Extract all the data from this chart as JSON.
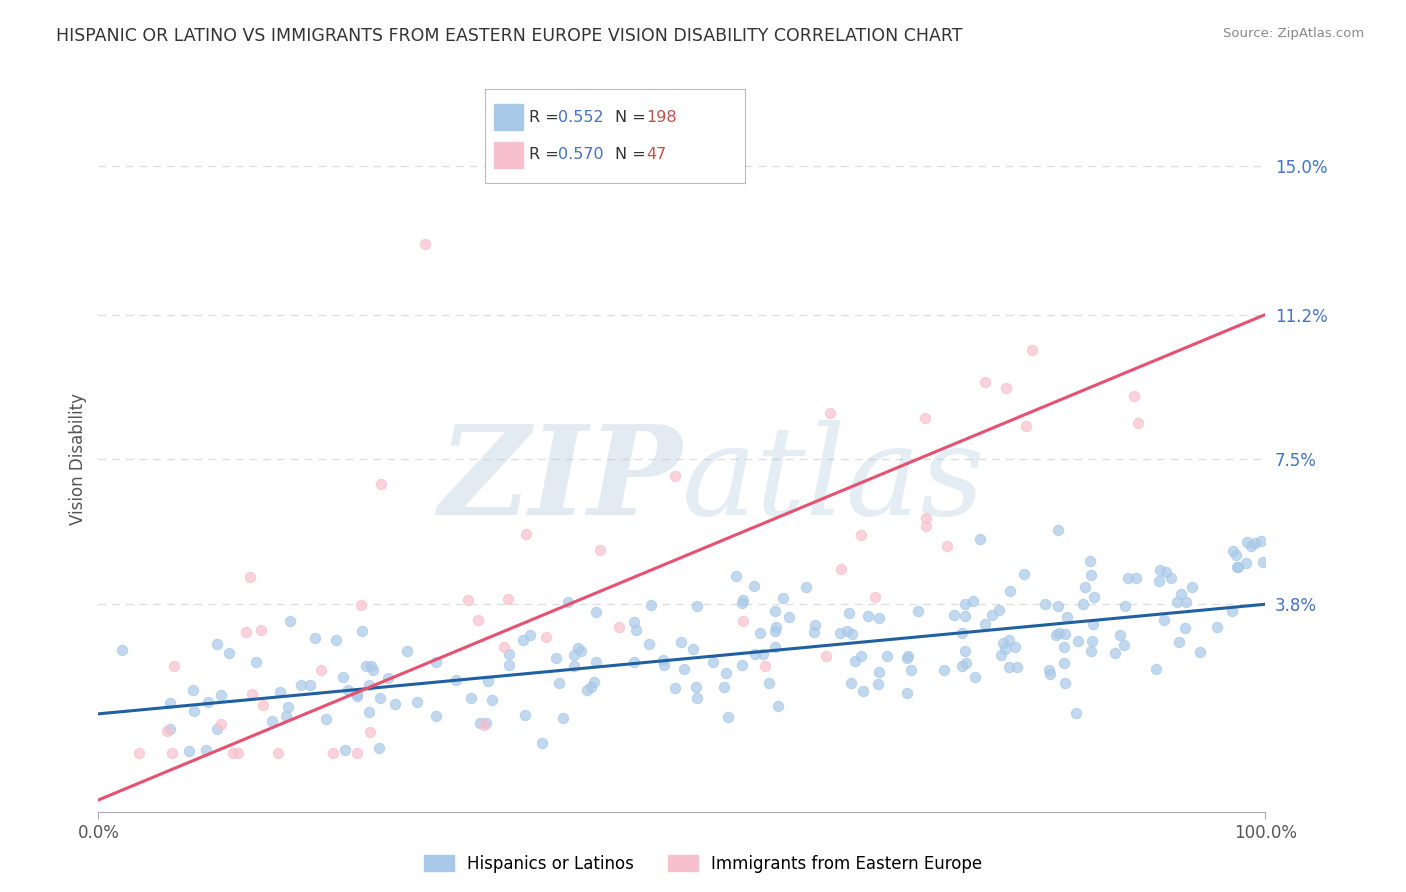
{
  "title": "HISPANIC OR LATINO VS IMMIGRANTS FROM EASTERN EUROPE VISION DISABILITY CORRELATION CHART",
  "source": "Source: ZipAtlas.com",
  "ylabel": "Vision Disability",
  "xlim": [
    0,
    100
  ],
  "ylim": [
    -1.5,
    16.5
  ],
  "ytick_vals": [
    3.8,
    7.5,
    11.2,
    15.0
  ],
  "ytick_labels": [
    "3.8%",
    "7.5%",
    "11.2%",
    "15.0%"
  ],
  "xtick_vals": [
    0,
    100
  ],
  "xtick_labels": [
    "0.0%",
    "100.0%"
  ],
  "blue_scatter_color": "#A8C8E8",
  "pink_scatter_color": "#F8C0CC",
  "blue_line_color": "#2060A0",
  "pink_line_color": "#E85070",
  "blue_R": 0.552,
  "blue_N": 198,
  "pink_R": 0.57,
  "pink_N": 47,
  "legend_label_blue": "Hispanics or Latinos",
  "legend_label_pink": "Immigrants from Eastern Europe",
  "watermark_zip": "ZIP",
  "watermark_atlas": "atlas",
  "bg_color": "#FFFFFF",
  "grid_color": "#DDDDDD",
  "title_color": "#333333",
  "yticklabel_color": "#4472C4",
  "R_color": "#4472C4",
  "N_color": "#C0504D",
  "blue_trend_start_y": 1.0,
  "blue_trend_end_y": 3.8,
  "pink_trend_start_y": -1.2,
  "pink_trend_end_y": 11.2
}
